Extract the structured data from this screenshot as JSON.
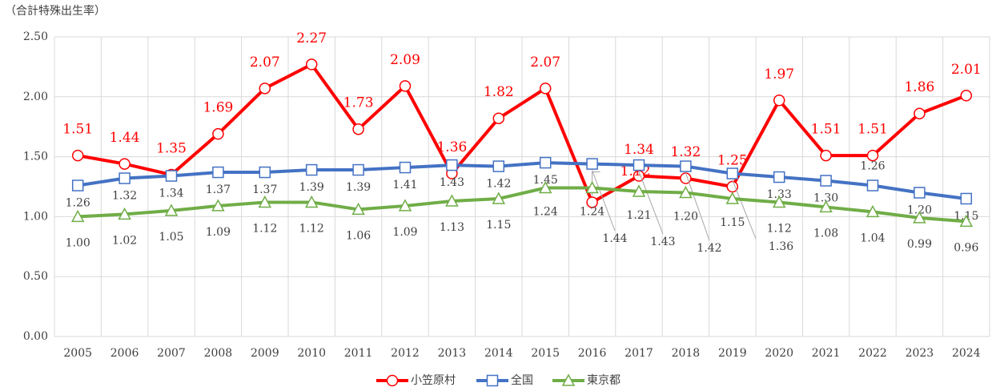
{
  "chart_data": {
    "type": "line",
    "y_label": "（合計特殊出生率）",
    "categories": [
      "2005",
      "2006",
      "2007",
      "2008",
      "2009",
      "2010",
      "2011",
      "2012",
      "2013",
      "2014",
      "2015",
      "2016",
      "2017",
      "2018",
      "2019",
      "2020",
      "2021",
      "2022",
      "2023",
      "2024"
    ],
    "series": [
      {
        "name": "小笠原村",
        "color": "#ff0000",
        "marker": "circle",
        "values": [
          1.51,
          1.44,
          1.35,
          1.69,
          2.07,
          2.27,
          1.73,
          2.09,
          1.36,
          1.82,
          2.07,
          1.12,
          1.34,
          1.32,
          1.25,
          1.97,
          1.51,
          1.51,
          1.86,
          2.01
        ],
        "value_labels": [
          "1.51",
          "1.44",
          "1.35",
          "1.69",
          "2.07",
          "2.27",
          "1.73",
          "2.09",
          "1.36",
          "1.82",
          "2.07",
          "1.12",
          "1.34",
          "1.32",
          "1.25",
          "1.97",
          "1.51",
          "1.51",
          "1.86",
          "2.01"
        ]
      },
      {
        "name": "全国",
        "color": "#4472c4",
        "marker": "square",
        "values": [
          1.26,
          1.32,
          1.34,
          1.37,
          1.37,
          1.39,
          1.39,
          1.41,
          1.43,
          1.42,
          1.45,
          1.44,
          1.43,
          1.42,
          1.36,
          1.33,
          1.3,
          1.26,
          1.2,
          1.15
        ],
        "value_labels": [
          "1.26",
          "1.32",
          "1.34",
          "1.37",
          "1.37",
          "1.39",
          "1.39",
          "1.41",
          "1.43",
          "1.42",
          "1.45",
          "1.44",
          "1.43",
          "1.42",
          "1.36",
          "1.33",
          "1.30",
          "1.26",
          "1.20",
          "1.15"
        ]
      },
      {
        "name": "東京都",
        "color": "#70ad47",
        "marker": "triangle",
        "values": [
          1.0,
          1.02,
          1.05,
          1.09,
          1.12,
          1.12,
          1.06,
          1.09,
          1.13,
          1.15,
          1.24,
          1.24,
          1.21,
          1.2,
          1.15,
          1.12,
          1.08,
          1.04,
          0.99,
          0.96
        ],
        "value_labels": [
          "1.00",
          "1.02",
          "1.05",
          "1.09",
          "1.12",
          "1.12",
          "1.06",
          "1.09",
          "1.13",
          "1.15",
          "1.24",
          "1.24",
          "1.21",
          "1.20",
          "1.15",
          "1.12",
          "1.08",
          "1.04",
          "0.99",
          "0.96"
        ]
      }
    ],
    "ylim": [
      0,
      2.5
    ],
    "yticks": [
      {
        "value": 0,
        "label": "0.00"
      },
      {
        "value": 0.5,
        "label": "0.50"
      },
      {
        "value": 1,
        "label": "1.00"
      },
      {
        "value": 1.5,
        "label": "1.50"
      },
      {
        "value": 2,
        "label": "2.00"
      },
      {
        "value": 2.5,
        "label": "2.50"
      }
    ],
    "grid": true,
    "legend": "bottom"
  }
}
